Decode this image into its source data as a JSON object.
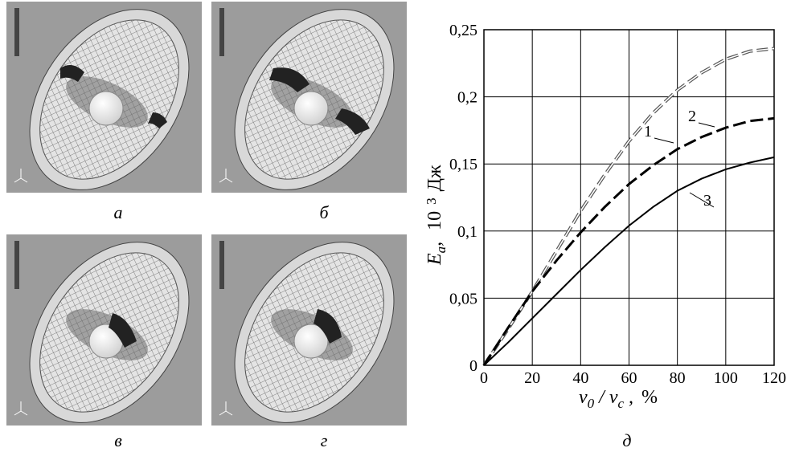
{
  "panels": {
    "captions": [
      "а",
      "б",
      "в",
      "г"
    ]
  },
  "chart_data": {
    "type": "line",
    "caption": "д",
    "ylabel": {
      "main": "E",
      "sub": "a",
      "sep": ",",
      "scale": "10",
      "power": "3",
      "unit": "Дж"
    },
    "xlabel": {
      "main": "v",
      "sub": "0",
      "sep": "/",
      "main2": "v",
      "sub2": "c",
      "comma": ",",
      "unit": "%"
    },
    "x": [
      0,
      10,
      20,
      30,
      40,
      50,
      60,
      70,
      80,
      90,
      100,
      110,
      120
    ],
    "series": [
      {
        "name": "1",
        "color": "#555555",
        "style": "double-dash",
        "values": [
          0,
          0.027,
          0.055,
          0.085,
          0.115,
          0.142,
          0.167,
          0.188,
          0.205,
          0.218,
          0.228,
          0.234,
          0.236
        ]
      },
      {
        "name": "2",
        "color": "#000000",
        "style": "dash",
        "values": [
          0,
          0.028,
          0.055,
          0.078,
          0.099,
          0.118,
          0.135,
          0.149,
          0.161,
          0.17,
          0.177,
          0.182,
          0.184
        ]
      },
      {
        "name": "3",
        "color": "#000000",
        "style": "solid",
        "values": [
          0,
          0.017,
          0.035,
          0.053,
          0.071,
          0.088,
          0.104,
          0.118,
          0.13,
          0.139,
          0.146,
          0.151,
          0.155
        ]
      }
    ],
    "xlim": [
      0,
      120
    ],
    "xticks": [
      0,
      20,
      40,
      60,
      80,
      100,
      120
    ],
    "ylim": [
      0,
      0.25
    ],
    "yticks": [
      0,
      {
        "value": 0.05,
        "label": "0,05"
      },
      {
        "value": 0.1,
        "label": "0,1"
      },
      {
        "value": 0.15,
        "label": "0,15"
      },
      {
        "value": 0.2,
        "label": "0,2"
      },
      {
        "value": 0.25,
        "label": "0,25"
      }
    ],
    "grid": true
  }
}
